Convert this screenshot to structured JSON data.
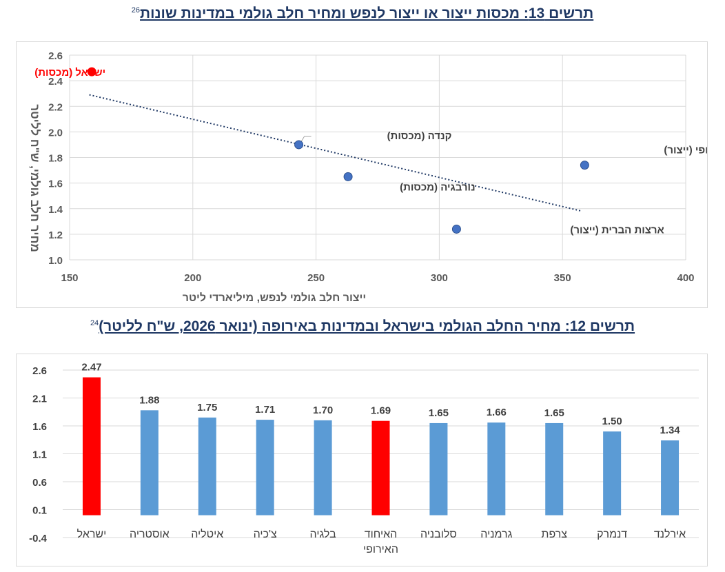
{
  "chart_data": [
    {
      "type": "scatter",
      "title": "תרשים 13: מכסות ייצור או ייצור לנפש ומחיר חלב גולמי במדינות שונות",
      "footnote": "26",
      "xlabel": "ייצור חלב גולמי לנפש, מיליארדי ליטר",
      "ylabel": "מחיר חלב גולמי, ש\"ח לליטר",
      "xlim": [
        150,
        400
      ],
      "ylim": [
        1.0,
        2.6
      ],
      "x_ticks": [
        "150",
        "200",
        "250",
        "300",
        "350",
        "400"
      ],
      "y_ticks": [
        "1.0",
        "1.2",
        "1.4",
        "1.6",
        "1.8",
        "2.0",
        "2.2",
        "2.4",
        "2.6"
      ],
      "trendline": {
        "style": "dotted",
        "x": [
          158,
          358
        ],
        "y": [
          2.29,
          1.38
        ]
      },
      "points": [
        {
          "label": "ישראל (מכסות)",
          "x": 159,
          "y": 2.47,
          "color": "#ff0000"
        },
        {
          "label": "קנדה (מכסות)",
          "x": 243,
          "y": 1.9,
          "color": "#4472c4"
        },
        {
          "label": "נורבגיה (מכסות)",
          "x": 263,
          "y": 1.65,
          "color": "#4472c4"
        },
        {
          "label": "ארצות הברית (ייצור)",
          "x": 307,
          "y": 1.24,
          "color": "#4472c4"
        },
        {
          "label": "האיחוד האירופי (ייצור)",
          "x": 359,
          "y": 1.74,
          "color": "#4472c4"
        }
      ]
    },
    {
      "type": "bar",
      "title": "תרשים 12: מחיר החלב הגולמי בישראל ובמדינות באירופה (ינואר 2026, ש\"ח לליטר)",
      "footnote": "24",
      "ylim": [
        -0.4,
        2.6
      ],
      "y_ticks": [
        "-0.4",
        "0.1",
        "0.6",
        "1.1",
        "1.6",
        "2.1",
        "2.6"
      ],
      "categories": [
        [
          "ישראל"
        ],
        [
          "אוסטריה"
        ],
        [
          "איטליה"
        ],
        [
          "צ'כיה"
        ],
        [
          "בלגיה"
        ],
        [
          "האיחוד",
          "האירופי"
        ],
        [
          "סלובניה"
        ],
        [
          "גרמניה"
        ],
        [
          "צרפת"
        ],
        [
          "דנמרק"
        ],
        [
          "אירלנד"
        ]
      ],
      "values": [
        2.47,
        1.88,
        1.75,
        1.71,
        1.7,
        1.69,
        1.65,
        1.66,
        1.65,
        1.5,
        1.34
      ],
      "value_labels": [
        "2.47",
        "1.88",
        "1.75",
        "1.71",
        "1.70",
        "1.69",
        "1.65",
        "1.66",
        "1.65",
        "1.50",
        "1.34"
      ],
      "colors": [
        "#ff0000",
        "#5b9bd5",
        "#5b9bd5",
        "#5b9bd5",
        "#5b9bd5",
        "#ff0000",
        "#5b9bd5",
        "#5b9bd5",
        "#5b9bd5",
        "#5b9bd5",
        "#5b9bd5"
      ]
    }
  ]
}
